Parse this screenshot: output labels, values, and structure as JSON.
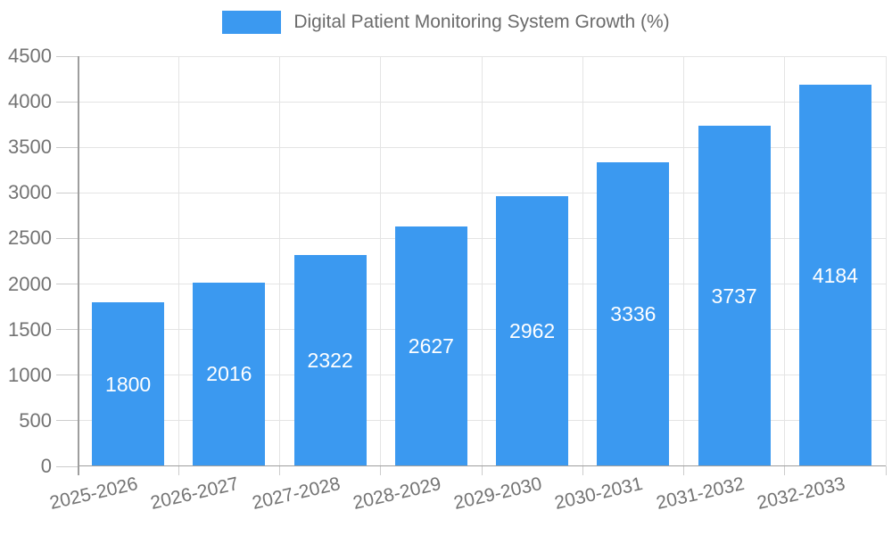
{
  "chart_data": {
    "type": "bar",
    "legend": "Digital Patient Monitoring System Growth (%)",
    "legend_position": "top",
    "categories": [
      "2025-2026",
      "2026-2027",
      "2027-2028",
      "2028-2029",
      "2029-2030",
      "2030-2031",
      "2031-2032",
      "2032-2033"
    ],
    "values": [
      1800,
      2016,
      2322,
      2627,
      2962,
      3336,
      3737,
      4184
    ],
    "value_labels": [
      "1800",
      "2016",
      "2322",
      "2627",
      "2962",
      "3336",
      "3737",
      "4184"
    ],
    "value_label_position": "inside-center",
    "xlabel": "",
    "ylabel": "",
    "ylim": [
      0,
      4500
    ],
    "yticks": [
      0,
      500,
      1000,
      1500,
      2000,
      2500,
      3000,
      3500,
      4000,
      4500
    ],
    "grid": true,
    "colors": {
      "bar": "#3b99f0",
      "value_label": "#ffffff",
      "axis_text": "#737373",
      "legend_text": "#6b6b6b",
      "gridline": "#e4e4e4",
      "axis_line": "#9e9e9e",
      "background": "#ffffff"
    }
  }
}
